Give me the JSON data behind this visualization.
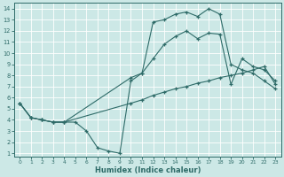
{
  "xlabel": "Humidex (Indice chaleur)",
  "bg_color": "#cce8e6",
  "grid_color": "#b8d8d6",
  "line_color": "#2e6b68",
  "xlim_min": -0.5,
  "xlim_max": 23.5,
  "ylim_min": 0.7,
  "ylim_max": 14.5,
  "xticks": [
    0,
    1,
    2,
    3,
    4,
    5,
    6,
    7,
    8,
    9,
    10,
    11,
    12,
    13,
    14,
    15,
    16,
    17,
    18,
    19,
    20,
    21,
    22,
    23
  ],
  "yticks": [
    1,
    2,
    3,
    4,
    5,
    6,
    7,
    8,
    9,
    10,
    11,
    12,
    13,
    14
  ],
  "line1_x": [
    0,
    1,
    2,
    3,
    4,
    5,
    6,
    7,
    8,
    9,
    10,
    11,
    12,
    13,
    14,
    15,
    16,
    17,
    18,
    19,
    20,
    21,
    22,
    23
  ],
  "line1_y": [
    5.5,
    4.2,
    4.0,
    3.8,
    3.8,
    3.8,
    3.0,
    1.5,
    1.2,
    1.0,
    7.5,
    8.2,
    12.8,
    13.0,
    13.5,
    13.7,
    13.3,
    14.0,
    13.5,
    9.0,
    8.5,
    8.2,
    7.5,
    6.8
  ],
  "line2_x": [
    0,
    1,
    2,
    3,
    4,
    10,
    11,
    12,
    13,
    14,
    15,
    16,
    17,
    18,
    19,
    20,
    21,
    22,
    23
  ],
  "line2_y": [
    5.5,
    4.2,
    4.0,
    3.8,
    3.8,
    7.8,
    8.2,
    9.5,
    10.8,
    11.5,
    12.0,
    11.3,
    11.8,
    11.7,
    7.2,
    9.5,
    8.8,
    8.5,
    7.5
  ],
  "line3_x": [
    0,
    1,
    2,
    3,
    4,
    10,
    11,
    12,
    13,
    14,
    15,
    16,
    17,
    18,
    19,
    20,
    21,
    22,
    23
  ],
  "line3_y": [
    5.5,
    4.2,
    4.0,
    3.8,
    3.8,
    5.5,
    5.8,
    6.2,
    6.5,
    6.8,
    7.0,
    7.3,
    7.5,
    7.8,
    8.0,
    8.2,
    8.5,
    8.8,
    7.2
  ]
}
